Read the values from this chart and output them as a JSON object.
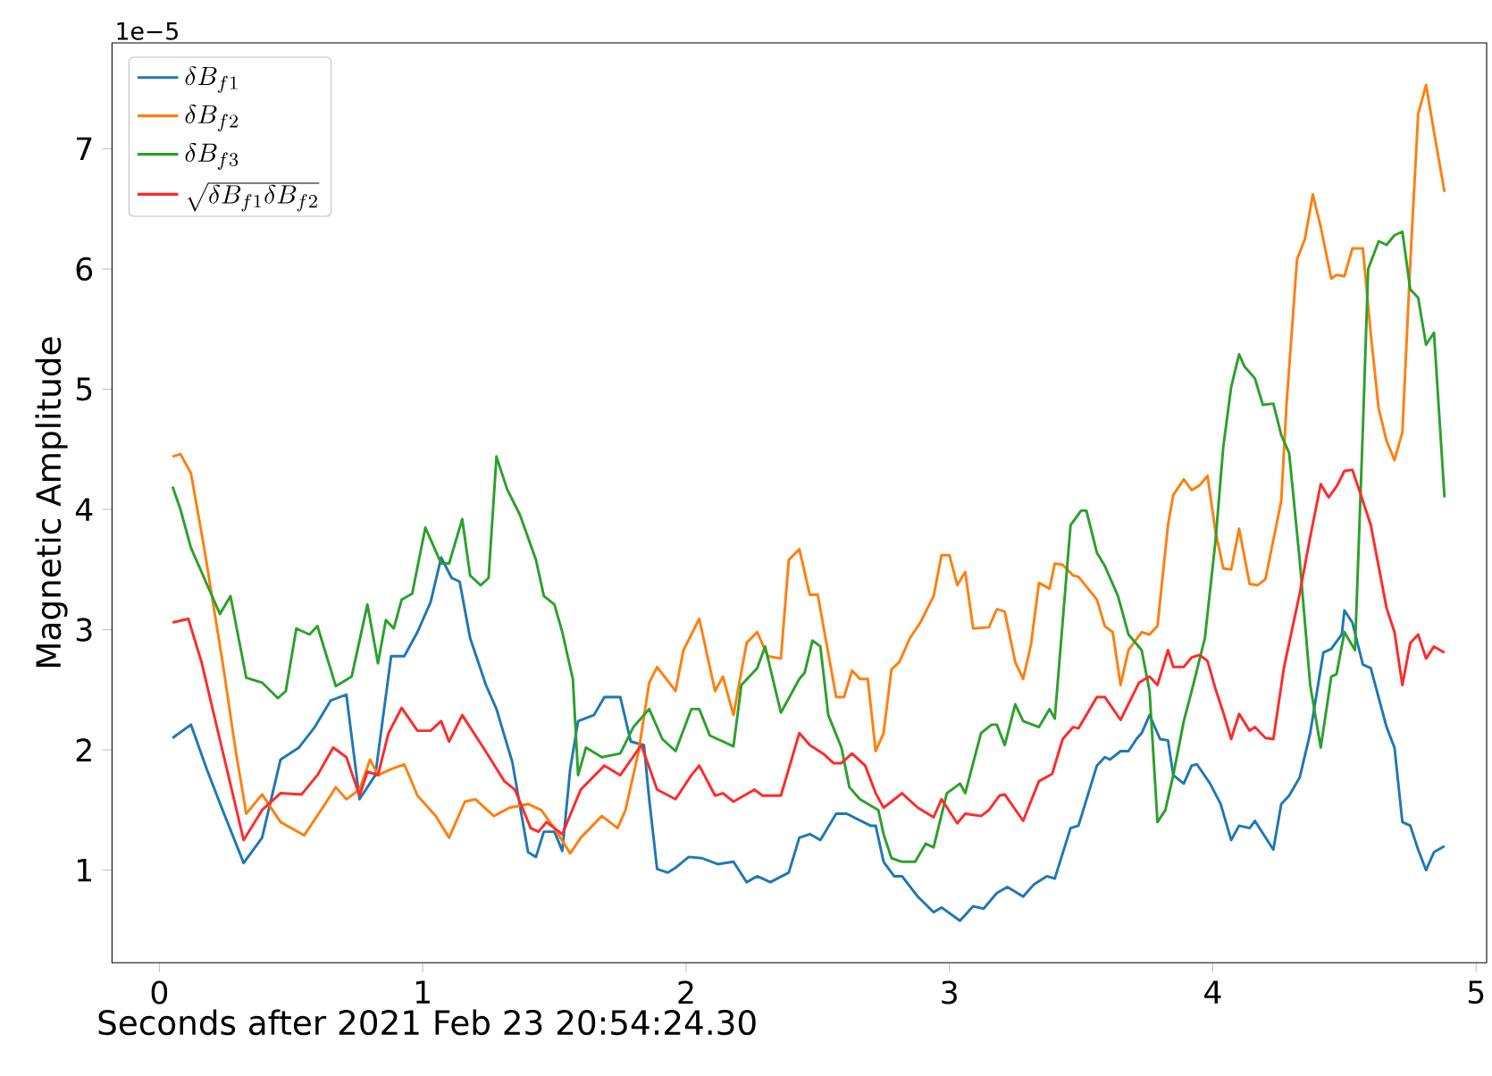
{
  "chart_data": {
    "type": "line",
    "xlabel": "Seconds after 2021 Feb 23 20:54:24.30",
    "ylabel": "Magnetic Amplitude",
    "annotations": [
      "1e−5"
    ],
    "xlim": [
      -0.18,
      5.04
    ],
    "ylim": [
      0.23,
      7.88
    ],
    "xticks": [
      0,
      1,
      2,
      3,
      4,
      5
    ],
    "yticks": [
      1,
      2,
      3,
      4,
      5,
      6,
      7
    ],
    "grid": false,
    "legend": "top left",
    "series": [
      {
        "name": "\\delta B_{f1}",
        "color": "#1f77b4",
        "x": [
          0.05,
          0.12,
          0.18,
          0.24,
          0.32,
          0.39,
          0.46,
          0.53,
          0.59,
          0.65,
          0.71,
          0.76,
          0.82,
          0.88,
          0.93,
          0.98,
          1.03,
          1.07,
          1.11,
          1.14,
          1.18,
          1.24,
          1.28,
          1.34,
          1.4,
          1.43,
          1.46,
          1.5,
          1.53,
          1.56,
          1.59,
          1.65,
          1.69,
          1.75,
          1.79,
          1.84,
          1.86,
          1.89,
          1.93,
          1.96,
          2.01,
          2.06,
          2.12,
          2.18,
          2.23,
          2.27,
          2.32,
          2.39,
          2.43,
          2.47,
          2.51,
          2.57,
          2.61,
          2.7,
          2.72,
          2.75,
          2.79,
          2.82,
          2.88,
          2.94,
          2.97,
          3.04,
          3.09,
          3.13,
          3.18,
          3.22,
          3.28,
          3.32,
          3.37,
          3.4,
          3.46,
          3.49,
          3.56,
          3.59,
          3.61,
          3.65,
          3.68,
          3.71,
          3.73,
          3.76,
          3.8,
          3.83,
          3.85,
          3.89,
          3.92,
          3.94,
          3.99,
          4.03,
          4.07,
          4.1,
          4.14,
          4.16,
          4.23,
          4.26,
          4.29,
          4.33,
          4.37,
          4.42,
          4.45,
          4.49,
          4.5,
          4.53,
          4.57,
          4.6,
          4.66,
          4.69,
          4.72,
          4.75,
          4.78,
          4.81,
          4.84,
          4.88
        ],
        "values": [
          2.1,
          2.21,
          1.84,
          1.5,
          1.06,
          1.27,
          1.92,
          2.02,
          2.19,
          2.41,
          2.46,
          1.59,
          1.79,
          2.78,
          2.78,
          2.98,
          3.23,
          3.6,
          3.43,
          3.4,
          2.93,
          2.54,
          2.34,
          1.9,
          1.15,
          1.11,
          1.32,
          1.32,
          1.16,
          1.84,
          2.24,
          2.29,
          2.44,
          2.44,
          2.07,
          2.04,
          1.59,
          1.01,
          0.98,
          1.02,
          1.11,
          1.1,
          1.05,
          1.07,
          0.9,
          0.95,
          0.9,
          0.98,
          1.27,
          1.3,
          1.25,
          1.47,
          1.47,
          1.37,
          1.37,
          1.07,
          0.95,
          0.95,
          0.78,
          0.65,
          0.69,
          0.58,
          0.7,
          0.68,
          0.81,
          0.86,
          0.78,
          0.88,
          0.95,
          0.93,
          1.35,
          1.37,
          1.87,
          1.94,
          1.92,
          1.99,
          1.99,
          2.09,
          2.14,
          2.29,
          2.09,
          2.08,
          1.79,
          1.72,
          1.87,
          1.88,
          1.72,
          1.55,
          1.25,
          1.37,
          1.35,
          1.41,
          1.17,
          1.55,
          1.62,
          1.77,
          2.14,
          2.81,
          2.84,
          2.96,
          3.16,
          3.06,
          2.71,
          2.68,
          2.19,
          2.02,
          1.4,
          1.37,
          1.17,
          1.0,
          1.15,
          1.2
        ]
      },
      {
        "name": "\\delta B_{f2}",
        "color": "#ff7f0e",
        "x": [
          0.05,
          0.08,
          0.12,
          0.17,
          0.24,
          0.29,
          0.33,
          0.39,
          0.46,
          0.55,
          0.62,
          0.67,
          0.71,
          0.76,
          0.8,
          0.83,
          0.88,
          0.93,
          0.98,
          1.05,
          1.1,
          1.16,
          1.2,
          1.27,
          1.33,
          1.4,
          1.45,
          1.5,
          1.56,
          1.6,
          1.68,
          1.74,
          1.77,
          1.82,
          1.86,
          1.89,
          1.96,
          1.99,
          2.05,
          2.11,
          2.14,
          2.18,
          2.23,
          2.27,
          2.31,
          2.36,
          2.39,
          2.43,
          2.47,
          2.5,
          2.57,
          2.6,
          2.63,
          2.66,
          2.69,
          2.72,
          2.75,
          2.78,
          2.81,
          2.85,
          2.89,
          2.94,
          2.97,
          3.0,
          3.03,
          3.06,
          3.09,
          3.15,
          3.18,
          3.21,
          3.25,
          3.28,
          3.31,
          3.34,
          3.38,
          3.4,
          3.43,
          3.47,
          3.49,
          3.56,
          3.59,
          3.62,
          3.65,
          3.68,
          3.73,
          3.76,
          3.79,
          3.83,
          3.85,
          3.89,
          3.92,
          3.95,
          3.98,
          4.01,
          4.04,
          4.07,
          4.1,
          4.14,
          4.17,
          4.2,
          4.26,
          4.28,
          4.32,
          4.35,
          4.38,
          4.41,
          4.45,
          4.47,
          4.5,
          4.53,
          4.57,
          4.6,
          4.63,
          4.66,
          4.69,
          4.72,
          4.75,
          4.78,
          4.81,
          4.84,
          4.88
        ],
        "values": [
          4.44,
          4.46,
          4.3,
          3.68,
          2.73,
          1.99,
          1.47,
          1.63,
          1.4,
          1.29,
          1.52,
          1.69,
          1.59,
          1.67,
          1.92,
          1.79,
          1.84,
          1.88,
          1.62,
          1.45,
          1.27,
          1.57,
          1.59,
          1.45,
          1.52,
          1.55,
          1.5,
          1.35,
          1.14,
          1.27,
          1.45,
          1.35,
          1.5,
          1.99,
          2.56,
          2.69,
          2.49,
          2.83,
          3.09,
          2.49,
          2.61,
          2.29,
          2.89,
          2.98,
          2.78,
          2.76,
          3.58,
          3.67,
          3.29,
          3.29,
          2.44,
          2.44,
          2.66,
          2.59,
          2.59,
          1.99,
          2.14,
          2.67,
          2.73,
          2.93,
          3.06,
          3.28,
          3.62,
          3.62,
          3.37,
          3.48,
          3.01,
          3.02,
          3.17,
          3.15,
          2.73,
          2.59,
          2.88,
          3.39,
          3.34,
          3.55,
          3.54,
          3.45,
          3.44,
          3.25,
          3.03,
          2.98,
          2.54,
          2.83,
          2.98,
          2.96,
          3.03,
          3.87,
          4.12,
          4.25,
          4.16,
          4.2,
          4.28,
          3.82,
          3.51,
          3.5,
          3.84,
          3.38,
          3.37,
          3.42,
          4.07,
          4.87,
          6.08,
          6.25,
          6.62,
          6.35,
          5.92,
          5.95,
          5.94,
          6.17,
          6.17,
          5.46,
          4.84,
          4.57,
          4.41,
          4.64,
          6.05,
          7.29,
          7.53,
          7.14,
          6.64
        ]
      },
      {
        "name": "\\delta B_{f3}",
        "color": "#2ca02c",
        "x": [
          0.05,
          0.08,
          0.12,
          0.16,
          0.23,
          0.27,
          0.33,
          0.39,
          0.45,
          0.48,
          0.52,
          0.57,
          0.6,
          0.67,
          0.73,
          0.79,
          0.83,
          0.86,
          0.89,
          0.92,
          0.96,
          1.01,
          1.07,
          1.1,
          1.15,
          1.18,
          1.22,
          1.25,
          1.28,
          1.32,
          1.37,
          1.43,
          1.46,
          1.5,
          1.53,
          1.57,
          1.59,
          1.62,
          1.68,
          1.75,
          1.8,
          1.86,
          1.91,
          1.96,
          2.02,
          2.05,
          2.09,
          2.18,
          2.21,
          2.27,
          2.3,
          2.36,
          2.43,
          2.45,
          2.48,
          2.51,
          2.54,
          2.59,
          2.62,
          2.66,
          2.73,
          2.75,
          2.78,
          2.82,
          2.87,
          2.91,
          2.94,
          2.99,
          3.04,
          3.06,
          3.12,
          3.16,
          3.18,
          3.21,
          3.25,
          3.28,
          3.34,
          3.38,
          3.4,
          3.46,
          3.5,
          3.52,
          3.56,
          3.59,
          3.64,
          3.68,
          3.73,
          3.76,
          3.79,
          3.82,
          3.85,
          3.89,
          3.92,
          3.97,
          4.01,
          4.04,
          4.07,
          4.1,
          4.12,
          4.16,
          4.19,
          4.23,
          4.26,
          4.29,
          4.33,
          4.37,
          4.41,
          4.45,
          4.47,
          4.5,
          4.54,
          4.57,
          4.59,
          4.63,
          4.66,
          4.69,
          4.72,
          4.75,
          4.78,
          4.81,
          4.84,
          4.88
        ],
        "values": [
          4.19,
          4.0,
          3.68,
          3.48,
          3.13,
          3.28,
          2.6,
          2.56,
          2.43,
          2.49,
          3.01,
          2.96,
          3.03,
          2.53,
          2.61,
          3.21,
          2.72,
          3.08,
          3.01,
          3.25,
          3.3,
          3.85,
          3.55,
          3.55,
          3.92,
          3.45,
          3.37,
          3.43,
          4.44,
          4.17,
          3.95,
          3.58,
          3.28,
          3.21,
          2.98,
          2.59,
          1.79,
          2.02,
          1.94,
          1.97,
          2.19,
          2.34,
          2.09,
          1.99,
          2.34,
          2.34,
          2.12,
          2.03,
          2.54,
          2.68,
          2.86,
          2.31,
          2.59,
          2.64,
          2.91,
          2.86,
          2.29,
          2.02,
          1.69,
          1.59,
          1.5,
          1.3,
          1.1,
          1.07,
          1.07,
          1.22,
          1.19,
          1.64,
          1.72,
          1.64,
          2.14,
          2.21,
          2.21,
          2.04,
          2.38,
          2.24,
          2.19,
          2.34,
          2.26,
          3.87,
          3.99,
          3.99,
          3.64,
          3.53,
          3.28,
          2.96,
          2.83,
          2.49,
          1.4,
          1.5,
          1.79,
          2.24,
          2.49,
          2.93,
          3.73,
          4.52,
          5.02,
          5.29,
          5.19,
          5.09,
          4.87,
          4.88,
          4.62,
          4.47,
          3.58,
          2.54,
          2.02,
          2.61,
          2.63,
          2.98,
          2.83,
          4.67,
          6.0,
          6.23,
          6.2,
          6.28,
          6.31,
          5.83,
          5.76,
          5.37,
          5.47,
          4.1
        ]
      },
      {
        "name": "\\sqrt{\\delta B_{f1}\\delta B_{f2}}",
        "color": "#ff2a2a",
        "x": [
          0.05,
          0.11,
          0.16,
          0.24,
          0.32,
          0.39,
          0.46,
          0.54,
          0.6,
          0.66,
          0.71,
          0.76,
          0.79,
          0.83,
          0.87,
          0.92,
          0.98,
          1.03,
          1.07,
          1.1,
          1.15,
          1.23,
          1.31,
          1.35,
          1.41,
          1.44,
          1.47,
          1.53,
          1.6,
          1.69,
          1.75,
          1.83,
          1.89,
          1.96,
          2.02,
          2.05,
          2.11,
          2.14,
          2.18,
          2.26,
          2.29,
          2.36,
          2.43,
          2.47,
          2.52,
          2.56,
          2.59,
          2.63,
          2.68,
          2.72,
          2.75,
          2.78,
          2.82,
          2.88,
          2.94,
          2.97,
          3.03,
          3.06,
          3.12,
          3.15,
          3.19,
          3.21,
          3.28,
          3.34,
          3.39,
          3.43,
          3.47,
          3.49,
          3.56,
          3.59,
          3.65,
          3.72,
          3.76,
          3.79,
          3.83,
          3.85,
          3.89,
          3.92,
          3.95,
          3.98,
          4.01,
          4.04,
          4.07,
          4.1,
          4.14,
          4.16,
          4.2,
          4.23,
          4.27,
          4.33,
          4.37,
          4.41,
          4.44,
          4.47,
          4.5,
          4.53,
          4.57,
          4.6,
          4.66,
          4.69,
          4.72,
          4.75,
          4.78,
          4.81,
          4.84,
          4.88
        ],
        "values": [
          3.06,
          3.09,
          2.73,
          1.99,
          1.25,
          1.5,
          1.64,
          1.63,
          1.79,
          2.02,
          1.94,
          1.62,
          1.82,
          1.79,
          2.14,
          2.35,
          2.16,
          2.16,
          2.24,
          2.07,
          2.29,
          2.02,
          1.74,
          1.67,
          1.35,
          1.32,
          1.4,
          1.3,
          1.67,
          1.87,
          1.79,
          2.04,
          1.67,
          1.59,
          1.79,
          1.87,
          1.62,
          1.64,
          1.57,
          1.67,
          1.62,
          1.62,
          2.14,
          2.04,
          1.97,
          1.89,
          1.89,
          1.97,
          1.87,
          1.64,
          1.52,
          1.57,
          1.64,
          1.52,
          1.44,
          1.59,
          1.39,
          1.47,
          1.45,
          1.5,
          1.62,
          1.63,
          1.41,
          1.74,
          1.8,
          2.09,
          2.19,
          2.18,
          2.44,
          2.44,
          2.25,
          2.56,
          2.61,
          2.54,
          2.83,
          2.69,
          2.69,
          2.77,
          2.79,
          2.74,
          2.51,
          2.31,
          2.09,
          2.3,
          2.16,
          2.19,
          2.1,
          2.09,
          2.68,
          3.3,
          3.77,
          4.21,
          4.1,
          4.19,
          4.32,
          4.33,
          4.07,
          3.87,
          3.18,
          2.98,
          2.54,
          2.89,
          2.96,
          2.76,
          2.86,
          2.81
        ]
      }
    ]
  }
}
